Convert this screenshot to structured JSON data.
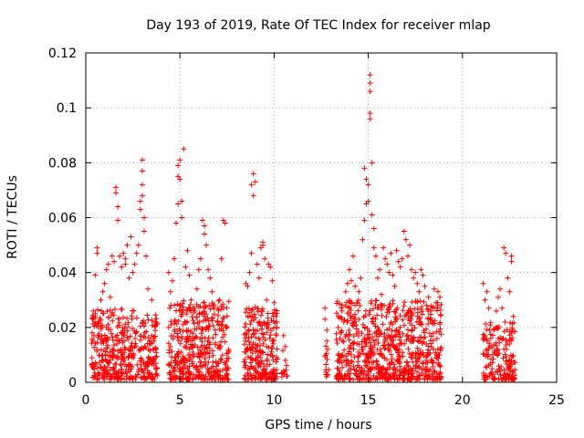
{
  "chart_data": {
    "type": "scatter",
    "title": "Day 193 of 2019, Rate Of TEC Index for receiver mlap",
    "xlabel": "GPS time / hours",
    "ylabel": "ROTI / TECUs",
    "xlim": [
      0,
      25
    ],
    "ylim": [
      0,
      0.12
    ],
    "x_ticks": [
      0,
      5,
      10,
      15,
      20,
      25
    ],
    "x_tick_labels": [
      "0",
      "5",
      "10",
      "15",
      "20",
      "25"
    ],
    "y_ticks": [
      0,
      0.02,
      0.04,
      0.06,
      0.08,
      0.1,
      0.12
    ],
    "y_tick_labels": [
      "0",
      "0.02",
      "0.04",
      "0.06",
      "0.08",
      "0.1",
      "0.12"
    ],
    "grid": true,
    "marker": "+",
    "marker_color": "#ff0000",
    "series": [
      {
        "name": "ROTI",
        "points": [
          [
            0.4,
            0.026
          ],
          [
            0.5,
            0.039
          ],
          [
            0.6,
            0.049
          ],
          [
            0.6,
            0.047
          ],
          [
            0.7,
            0.022
          ],
          [
            0.8,
            0.03
          ],
          [
            0.9,
            0.033
          ],
          [
            1.0,
            0.036
          ],
          [
            1.1,
            0.041
          ],
          [
            1.2,
            0.043
          ],
          [
            1.3,
            0.031
          ],
          [
            1.4,
            0.046
          ],
          [
            1.5,
            0.044
          ],
          [
            1.6,
            0.071
          ],
          [
            1.6,
            0.069
          ],
          [
            1.7,
            0.064
          ],
          [
            1.7,
            0.059
          ],
          [
            1.8,
            0.046
          ],
          [
            1.9,
            0.042
          ],
          [
            2.0,
            0.047
          ],
          [
            2.1,
            0.045
          ],
          [
            2.1,
            0.043
          ],
          [
            2.2,
            0.05
          ],
          [
            2.3,
            0.038
          ],
          [
            2.4,
            0.053
          ],
          [
            2.5,
            0.04
          ],
          [
            2.6,
            0.043
          ],
          [
            2.7,
            0.047
          ],
          [
            2.8,
            0.05
          ],
          [
            2.9,
            0.063
          ],
          [
            2.9,
            0.066
          ],
          [
            3.0,
            0.081
          ],
          [
            3.0,
            0.077
          ],
          [
            3.0,
            0.072
          ],
          [
            3.0,
            0.068
          ],
          [
            3.1,
            0.06
          ],
          [
            3.1,
            0.055
          ],
          [
            3.2,
            0.046
          ],
          [
            3.3,
            0.034
          ],
          [
            3.5,
            0.03
          ],
          [
            3.6,
            0.012
          ],
          [
            3.7,
            0.009
          ],
          [
            4.4,
            0.04
          ],
          [
            4.5,
            0.033
          ],
          [
            4.6,
            0.037
          ],
          [
            4.7,
            0.045
          ],
          [
            4.8,
            0.058
          ],
          [
            4.9,
            0.065
          ],
          [
            4.9,
            0.075
          ],
          [
            4.9,
            0.079
          ],
          [
            5.0,
            0.081
          ],
          [
            5.0,
            0.074
          ],
          [
            5.1,
            0.066
          ],
          [
            5.1,
            0.06
          ],
          [
            5.2,
            0.085
          ],
          [
            5.3,
            0.042
          ],
          [
            5.4,
            0.048
          ],
          [
            5.5,
            0.039
          ],
          [
            5.6,
            0.03
          ],
          [
            5.7,
            0.027
          ],
          [
            5.8,
            0.026
          ],
          [
            5.9,
            0.034
          ],
          [
            6.0,
            0.041
          ],
          [
            6.1,
            0.045
          ],
          [
            6.2,
            0.059
          ],
          [
            6.3,
            0.057
          ],
          [
            6.3,
            0.054
          ],
          [
            6.4,
            0.05
          ],
          [
            6.5,
            0.041
          ],
          [
            6.6,
            0.038
          ],
          [
            6.7,
            0.033
          ],
          [
            6.8,
            0.027
          ],
          [
            7.0,
            0.022
          ],
          [
            7.1,
            0.03
          ],
          [
            7.2,
            0.045
          ],
          [
            7.3,
            0.059
          ],
          [
            7.4,
            0.058
          ],
          [
            8.5,
            0.036
          ],
          [
            8.6,
            0.035
          ],
          [
            8.7,
            0.04
          ],
          [
            8.8,
            0.047
          ],
          [
            8.8,
            0.072
          ],
          [
            8.9,
            0.076
          ],
          [
            8.9,
            0.068
          ],
          [
            9.0,
            0.073
          ],
          [
            9.1,
            0.043
          ],
          [
            9.2,
            0.038
          ],
          [
            9.3,
            0.049
          ],
          [
            9.4,
            0.051
          ],
          [
            9.4,
            0.05
          ],
          [
            9.5,
            0.045
          ],
          [
            9.6,
            0.03
          ],
          [
            9.7,
            0.043
          ],
          [
            9.8,
            0.042
          ],
          [
            9.9,
            0.037
          ],
          [
            10.0,
            0.029
          ],
          [
            10.1,
            0.024
          ],
          [
            10.5,
            0.017
          ],
          [
            10.6,
            0.013
          ],
          [
            10.6,
            0.008
          ],
          [
            12.7,
            0.027
          ],
          [
            12.7,
            0.023
          ],
          [
            12.8,
            0.019
          ],
          [
            12.8,
            0.015
          ],
          [
            13.4,
            0.02
          ],
          [
            13.5,
            0.016
          ],
          [
            13.6,
            0.026
          ],
          [
            13.7,
            0.022
          ],
          [
            13.8,
            0.033
          ],
          [
            13.9,
            0.036
          ],
          [
            14.0,
            0.041
          ],
          [
            14.1,
            0.037
          ],
          [
            14.2,
            0.046
          ],
          [
            14.3,
            0.035
          ],
          [
            14.4,
            0.029
          ],
          [
            14.5,
            0.033
          ],
          [
            14.6,
            0.038
          ],
          [
            14.7,
            0.052
          ],
          [
            14.8,
            0.059
          ],
          [
            14.8,
            0.078
          ],
          [
            14.9,
            0.074
          ],
          [
            14.9,
            0.065
          ],
          [
            15.0,
            0.072
          ],
          [
            15.0,
            0.066
          ],
          [
            15.1,
            0.112
          ],
          [
            15.1,
            0.109
          ],
          [
            15.1,
            0.106
          ],
          [
            15.1,
            0.098
          ],
          [
            15.1,
            0.096
          ],
          [
            15.2,
            0.08
          ],
          [
            15.2,
            0.061
          ],
          [
            15.3,
            0.056
          ],
          [
            15.3,
            0.049
          ],
          [
            15.4,
            0.046
          ],
          [
            15.5,
            0.038
          ],
          [
            15.6,
            0.041
          ],
          [
            15.7,
            0.032
          ],
          [
            15.8,
            0.049
          ],
          [
            15.9,
            0.045
          ],
          [
            16.0,
            0.043
          ],
          [
            16.1,
            0.04
          ],
          [
            16.2,
            0.047
          ],
          [
            16.3,
            0.039
          ],
          [
            16.4,
            0.035
          ],
          [
            16.5,
            0.048
          ],
          [
            16.6,
            0.044
          ],
          [
            16.7,
            0.042
          ],
          [
            16.8,
            0.045
          ],
          [
            16.9,
            0.055
          ],
          [
            17.0,
            0.052
          ],
          [
            17.1,
            0.046
          ],
          [
            17.2,
            0.05
          ],
          [
            17.3,
            0.041
          ],
          [
            17.4,
            0.038
          ],
          [
            17.5,
            0.04
          ],
          [
            17.6,
            0.036
          ],
          [
            17.7,
            0.033
          ],
          [
            17.8,
            0.041
          ],
          [
            17.9,
            0.039
          ],
          [
            18.0,
            0.035
          ],
          [
            18.1,
            0.028
          ],
          [
            18.2,
            0.031
          ],
          [
            18.3,
            0.026
          ],
          [
            18.5,
            0.034
          ],
          [
            18.6,
            0.029
          ],
          [
            18.7,
            0.033
          ],
          [
            18.8,
            0.031
          ],
          [
            21.1,
            0.036
          ],
          [
            21.2,
            0.03
          ],
          [
            21.3,
            0.033
          ],
          [
            21.4,
            0.027
          ],
          [
            21.5,
            0.016
          ],
          [
            21.6,
            0.01
          ],
          [
            21.8,
            0.026
          ],
          [
            21.9,
            0.031
          ],
          [
            22.0,
            0.034
          ],
          [
            22.1,
            0.027
          ],
          [
            22.2,
            0.049
          ],
          [
            22.3,
            0.047
          ],
          [
            22.4,
            0.038
          ],
          [
            22.5,
            0.033
          ],
          [
            22.6,
            0.046
          ],
          [
            22.6,
            0.044
          ],
          [
            22.7,
            0.024
          ]
        ],
        "dense_clusters": [
          {
            "x": [
              0.3,
              3.8
            ],
            "y": [
              0.001,
              0.027
            ],
            "n": 420
          },
          {
            "x": [
              4.4,
              7.6
            ],
            "y": [
              0.001,
              0.03
            ],
            "n": 420
          },
          {
            "x": [
              8.4,
              10.2
            ],
            "y": [
              0.001,
              0.028
            ],
            "n": 240
          },
          {
            "x": [
              10.4,
              10.7
            ],
            "y": [
              0.002,
              0.012
            ],
            "n": 12
          },
          {
            "x": [
              12.7,
              12.9
            ],
            "y": [
              0.002,
              0.014
            ],
            "n": 14
          },
          {
            "x": [
              13.3,
              18.9
            ],
            "y": [
              0.001,
              0.03
            ],
            "n": 720
          },
          {
            "x": [
              21.1,
              22.8
            ],
            "y": [
              0.001,
              0.022
            ],
            "n": 170
          }
        ]
      }
    ]
  }
}
